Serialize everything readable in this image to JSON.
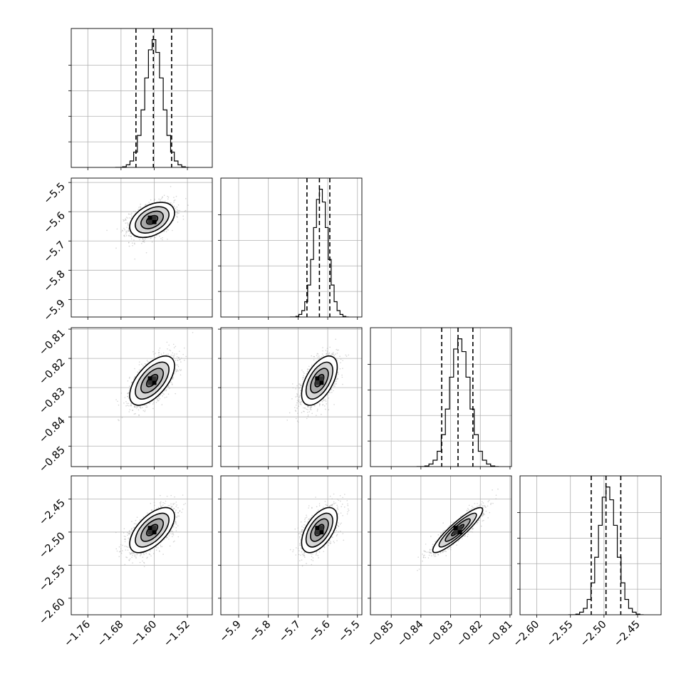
{
  "chart_data": {
    "type": "corner",
    "params": [
      {
        "range": [
          -1.8,
          -1.46
        ],
        "ticks": [
          -1.76,
          -1.68,
          -1.6,
          -1.52
        ],
        "tick_labels": [
          "−1.76",
          "−1.68",
          "−1.60",
          "−1.52"
        ],
        "quantiles": [
          -1.644,
          -1.602,
          -1.558
        ],
        "center": -1.605,
        "sigma": 0.027
      },
      {
        "range": [
          -5.96,
          -5.485
        ],
        "ticks": [
          -5.9,
          -5.8,
          -5.7,
          -5.6,
          -5.5
        ],
        "tick_labels": [
          "−5.9",
          "−5.8",
          "−5.7",
          "−5.6",
          "−5.5"
        ],
        "quantiles": [
          -5.67,
          -5.628,
          -5.593
        ],
        "center": -5.628,
        "sigma": 0.03
      },
      {
        "range": [
          -0.857,
          -0.8095
        ],
        "ticks": [
          -0.85,
          -0.84,
          -0.83,
          -0.82,
          -0.81
        ],
        "tick_labels": [
          "−0.85",
          "−0.84",
          "−0.83",
          "−0.82",
          "−0.81"
        ],
        "quantiles": [
          -0.833,
          -0.8275,
          -0.8225
        ],
        "center": -0.8276,
        "sigma": 0.0042
      },
      {
        "range": [
          -2.625,
          -2.415
        ],
        "ticks": [
          -2.6,
          -2.55,
          -2.5,
          -2.45
        ],
        "tick_labels": [
          "−2.60",
          "−2.55",
          "−2.50",
          "−2.45"
        ],
        "quantiles": [
          -2.519,
          -2.497,
          -2.475
        ],
        "center": -2.497,
        "sigma": 0.017
      }
    ],
    "correlations": [
      [
        1,
        0.4,
        0.6,
        0.6
      ],
      [
        0.4,
        1,
        0.55,
        0.55
      ],
      [
        0.6,
        0.55,
        1,
        0.9
      ],
      [
        0.6,
        0.55,
        0.9,
        1
      ]
    ],
    "histogram": {
      "bins": 20,
      "relative_heights": [
        0,
        0,
        0.005,
        0.02,
        0.05,
        0.12,
        0.25,
        0.45,
        0.7,
        0.92,
        1.0,
        0.9,
        0.7,
        0.45,
        0.25,
        0.12,
        0.05,
        0.02,
        0.005,
        0
      ]
    },
    "contour_levels_sigma": [
      0.5,
      1.0,
      1.5,
      2.0
    ],
    "grid": true,
    "scatter_color": "#a0a0a0",
    "line_color": "#000000"
  }
}
